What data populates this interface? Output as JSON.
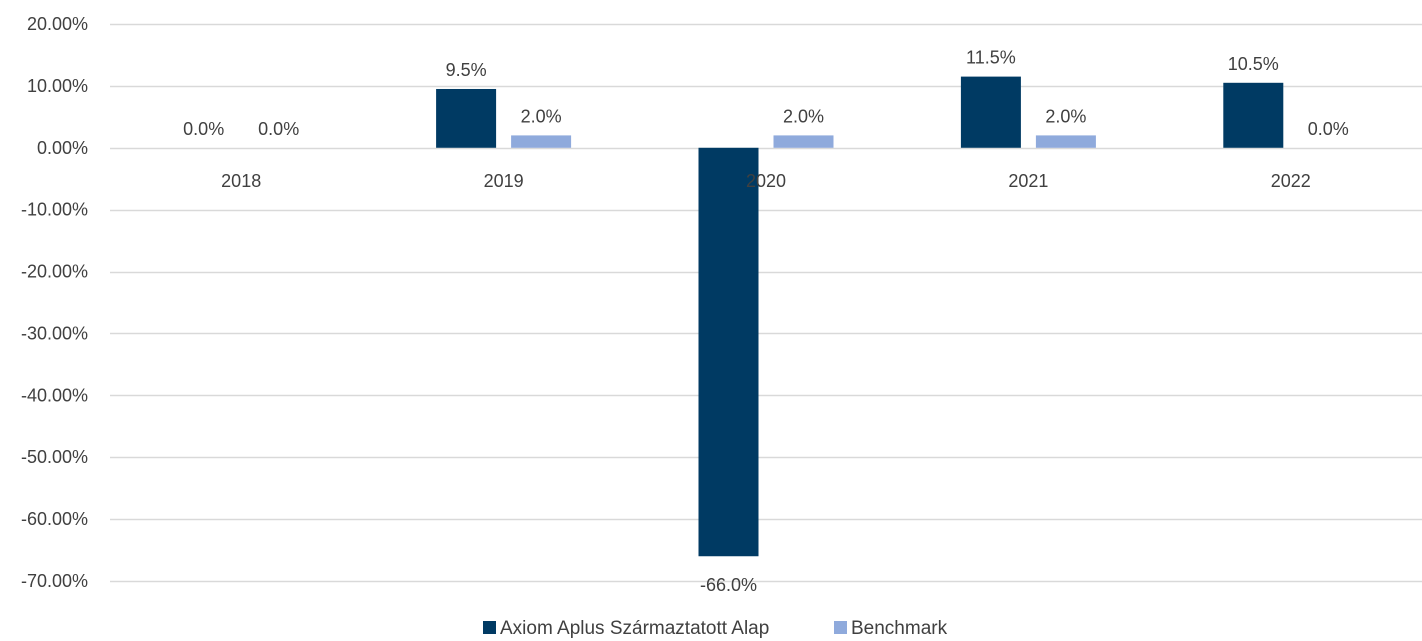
{
  "chart_data": {
    "type": "bar",
    "categories": [
      "2018",
      "2019",
      "2020",
      "2021",
      "2022"
    ],
    "series": [
      {
        "name": "Axiom Aplus Származtatott Alap",
        "values": [
          0.0,
          9.5,
          -66.0,
          11.5,
          10.5
        ],
        "labels": [
          "0.0%",
          "9.5%",
          "-66.0%",
          "11.5%",
          "10.5%"
        ],
        "color": "#003a63"
      },
      {
        "name": "Benchmark",
        "values": [
          0.0,
          2.0,
          2.0,
          2.0,
          0.0
        ],
        "labels": [
          "0.0%",
          "2.0%",
          "2.0%",
          "2.0%",
          "0.0%"
        ],
        "color": "#8faadc"
      }
    ],
    "yticks": [
      20,
      10,
      0,
      -10,
      -20,
      -30,
      -40,
      -50,
      -60,
      -70
    ],
    "ytick_labels": [
      "20.00%",
      "10.00%",
      "0.00%",
      "-10.00%",
      "-20.00%",
      "-30.00%",
      "-40.00%",
      "-50.00%",
      "-60.00%",
      "-70.00%"
    ],
    "ylim": [
      -70,
      20
    ],
    "grid": true,
    "legend_position": "bottom",
    "gridline_color": "#d9d9d9"
  }
}
